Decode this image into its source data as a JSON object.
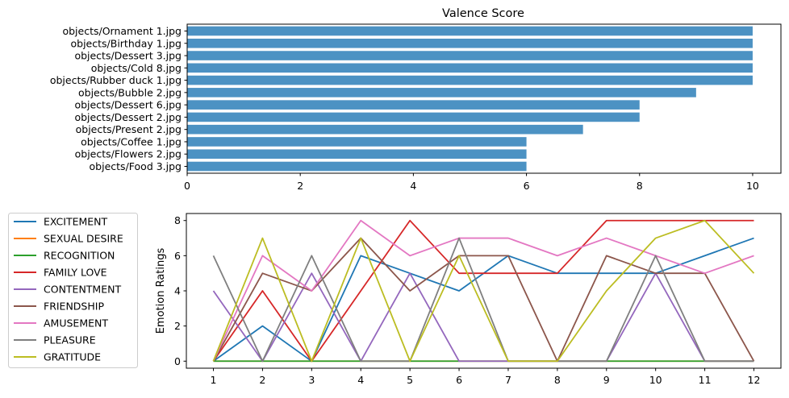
{
  "chart_data": [
    {
      "type": "bar",
      "orientation": "horizontal",
      "title": "Valence Score",
      "xlabel": "",
      "ylabel": "",
      "xlim": [
        0,
        10.5
      ],
      "xticks": [
        0,
        2,
        4,
        6,
        8,
        10
      ],
      "grid": false,
      "color": "#1f77b4",
      "categories": [
        "objects/Ornament 1.jpg",
        "objects/Birthday 1.jpg",
        "objects/Dessert 3.jpg",
        "objects/Cold 8.jpg",
        "objects/Rubber duck 1.jpg",
        "objects/Bubble 2.jpg",
        "objects/Dessert 6.jpg",
        "objects/Dessert 2.jpg",
        "objects/Present 2.jpg",
        "objects/Coffee 1.jpg",
        "objects/Flowers 2.jpg",
        "objects/Food 3.jpg"
      ],
      "values": [
        10,
        10,
        10,
        10,
        10,
        9,
        8,
        8,
        7,
        6,
        6,
        6
      ]
    },
    {
      "type": "line",
      "title": "",
      "xlabel": "",
      "ylabel": "Emotion Ratings",
      "ylim": [
        -0.4,
        8.4
      ],
      "yticks": [
        0,
        2,
        4,
        6,
        8
      ],
      "grid": false,
      "legend_position": "left",
      "x": [
        1,
        2,
        3,
        4,
        5,
        6,
        7,
        8,
        9,
        10,
        11,
        12
      ],
      "series": [
        {
          "name": "EXCITEMENT",
          "color": "#1f77b4",
          "values": [
            0,
            2,
            0,
            6,
            5,
            4,
            6,
            5,
            5,
            5,
            6,
            7
          ]
        },
        {
          "name": "SEXUAL DESIRE",
          "color": "#ff7f0e",
          "values": [
            0,
            0,
            0,
            0,
            0,
            0,
            0,
            0,
            0,
            0,
            0,
            0
          ]
        },
        {
          "name": "RECOGNITION",
          "color": "#2ca02c",
          "values": [
            0,
            0,
            0,
            0,
            0,
            0,
            0,
            0,
            0,
            0,
            0,
            0
          ]
        },
        {
          "name": "FAMILY LOVE",
          "color": "#d62728",
          "values": [
            0,
            4,
            0,
            4,
            8,
            5,
            5,
            5,
            8,
            8,
            8,
            8
          ]
        },
        {
          "name": "CONTENTMENT",
          "color": "#9467bd",
          "values": [
            4,
            0,
            5,
            0,
            5,
            0,
            0,
            0,
            0,
            5,
            0,
            0
          ]
        },
        {
          "name": "FRIENDSHIP",
          "color": "#8c564b",
          "values": [
            0,
            5,
            4,
            7,
            4,
            6,
            6,
            0,
            6,
            5,
            5,
            0
          ]
        },
        {
          "name": "AMUSEMENT",
          "color": "#e377c2",
          "values": [
            0,
            6,
            4,
            8,
            6,
            7,
            7,
            6,
            7,
            6,
            5,
            6
          ]
        },
        {
          "name": "PLEASURE",
          "color": "#7f7f7f",
          "values": [
            6,
            0,
            6,
            0,
            0,
            7,
            0,
            0,
            0,
            6,
            0,
            0
          ]
        },
        {
          "name": "GRATITUDE",
          "color": "#bcbd22",
          "values": [
            0,
            7,
            0,
            7,
            0,
            6,
            0,
            0,
            4,
            7,
            8,
            5
          ]
        }
      ]
    }
  ]
}
